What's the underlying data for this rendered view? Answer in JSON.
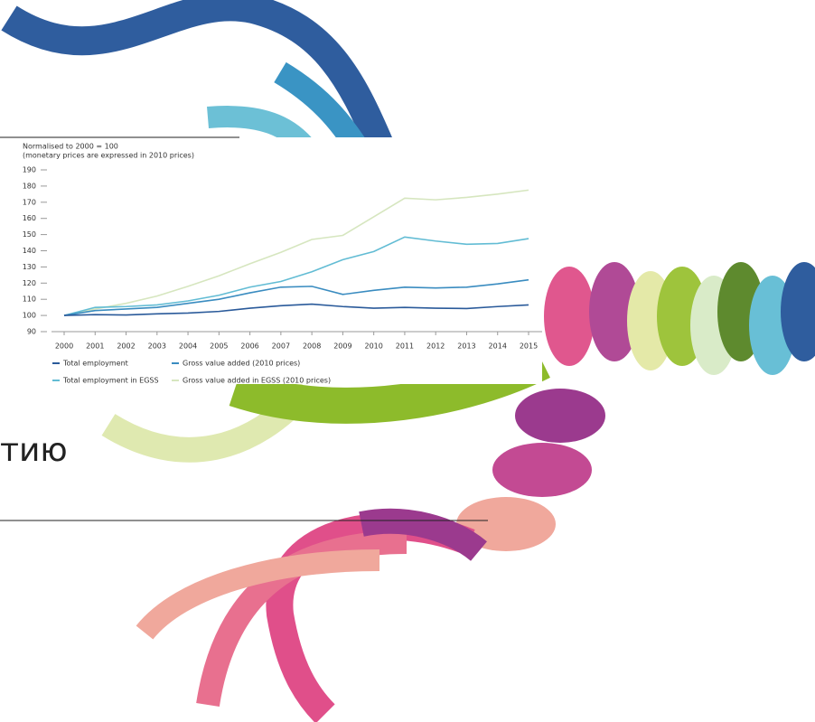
{
  "slide_text": "тию",
  "chart_data": {
    "type": "line",
    "subtitle": [
      "Normalised to 2000 = 100",
      "(monetary prices are expressed in 2010 prices)"
    ],
    "categories": [
      "2000",
      "2001",
      "2002",
      "2003",
      "2004",
      "2005",
      "2006",
      "2007",
      "2008",
      "2009",
      "2010",
      "2011",
      "2012",
      "2013",
      "2014",
      "2015"
    ],
    "series": [
      {
        "name": "Total employment",
        "color": "#2a5a9a",
        "values": [
          100,
          100.5,
          100.3,
          101,
          101.5,
          102.5,
          104.5,
          106,
          107,
          105.5,
          104.5,
          105,
          104.5,
          104.3,
          105.5,
          106.5
        ]
      },
      {
        "name": "Gross value added (2010 prices)",
        "color": "#3a8cc0",
        "values": [
          100,
          103,
          104,
          105,
          107.5,
          110,
          114,
          117.5,
          118,
          113,
          115.5,
          117.5,
          117,
          117.5,
          119.5,
          122
        ]
      },
      {
        "name": "Total employment in EGSS",
        "color": "#62bcd4",
        "values": [
          100,
          105,
          105.5,
          106.5,
          109,
          112.5,
          117.5,
          121,
          127,
          134.5,
          139.5,
          148.5,
          146,
          144,
          144.5,
          147.5
        ]
      },
      {
        "name": "Gross value added in EGSS (2010 prices)",
        "color": "#d6e6bf",
        "values": [
          100,
          104,
          107.5,
          112,
          118,
          124.5,
          132,
          139,
          147,
          149.5,
          161,
          172.5,
          171.5,
          173,
          175,
          177.5
        ]
      }
    ],
    "ylim": [
      90,
      190
    ],
    "yticks": [
      90,
      100,
      110,
      120,
      130,
      140,
      150,
      160,
      170,
      180,
      190
    ],
    "grid": false
  }
}
